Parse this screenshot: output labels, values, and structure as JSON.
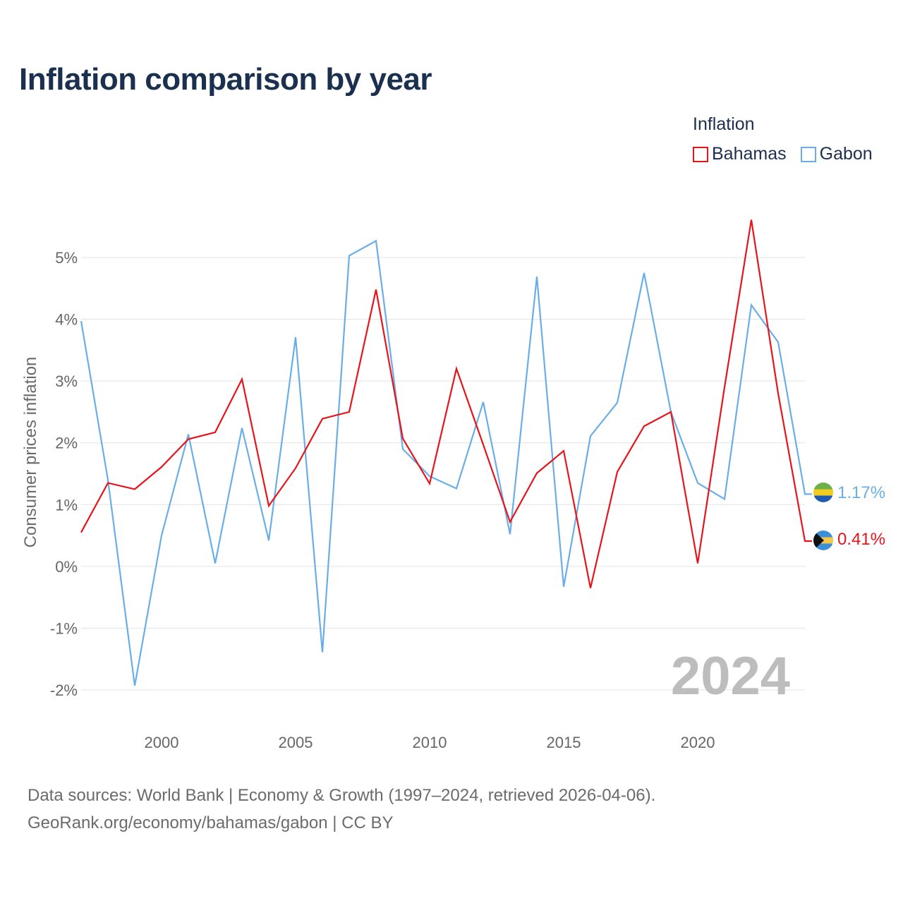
{
  "title": "Inflation comparison by year",
  "legend": {
    "title": "Inflation",
    "items": [
      {
        "name": "Bahamas",
        "color": "#e8141b"
      },
      {
        "name": "Gabon",
        "color": "#6aaee8"
      }
    ]
  },
  "source": {
    "line1": "Data sources: World Bank | Economy & Growth (1997–2024, retrieved 2026-04-06).",
    "line2": "GeoRank.org/economy/bahamas/gabon | CC BY"
  },
  "chart_data": {
    "type": "line",
    "title": "Inflation comparison by year",
    "xlabel": "",
    "ylabel": "Consumer prices inflation",
    "xlim": [
      1997,
      2024
    ],
    "ylim": [
      -2,
      5
    ],
    "x_ticks": [
      2000,
      2005,
      2010,
      2015,
      2020
    ],
    "y_ticks": [
      -2,
      -1,
      0,
      1,
      2,
      3,
      4,
      5
    ],
    "y_tick_labels": [
      "-2%",
      "-1%",
      "0%",
      "1%",
      "2%",
      "3%",
      "4%",
      "5%"
    ],
    "x": [
      1997,
      1998,
      1999,
      2000,
      2001,
      2002,
      2003,
      2004,
      2005,
      2006,
      2007,
      2008,
      2009,
      2010,
      2011,
      2012,
      2013,
      2014,
      2015,
      2016,
      2017,
      2018,
      2019,
      2020,
      2021,
      2022,
      2023,
      2024
    ],
    "series": [
      {
        "name": "Gabon",
        "color": "#6aaee8",
        "end_label": "1.17%",
        "values": [
          3.97,
          1.4,
          -1.93,
          0.5,
          2.14,
          0.05,
          2.24,
          0.42,
          3.71,
          -1.39,
          5.03,
          5.27,
          1.9,
          1.46,
          1.26,
          2.66,
          0.52,
          4.69,
          -0.33,
          2.11,
          2.65,
          4.75,
          2.5,
          1.35,
          1.09,
          4.23,
          3.63,
          1.17
        ]
      },
      {
        "name": "Bahamas",
        "color": "#e8141b",
        "end_label": "0.41%",
        "values": [
          0.55,
          1.35,
          1.25,
          1.61,
          2.06,
          2.17,
          3.03,
          0.98,
          1.59,
          2.39,
          2.5,
          4.48,
          2.07,
          1.34,
          3.2,
          1.97,
          0.72,
          1.51,
          1.87,
          -0.35,
          1.53,
          2.27,
          2.5,
          0.05,
          2.9,
          5.61,
          2.8,
          0.41
        ]
      }
    ],
    "annotation": "2024"
  }
}
